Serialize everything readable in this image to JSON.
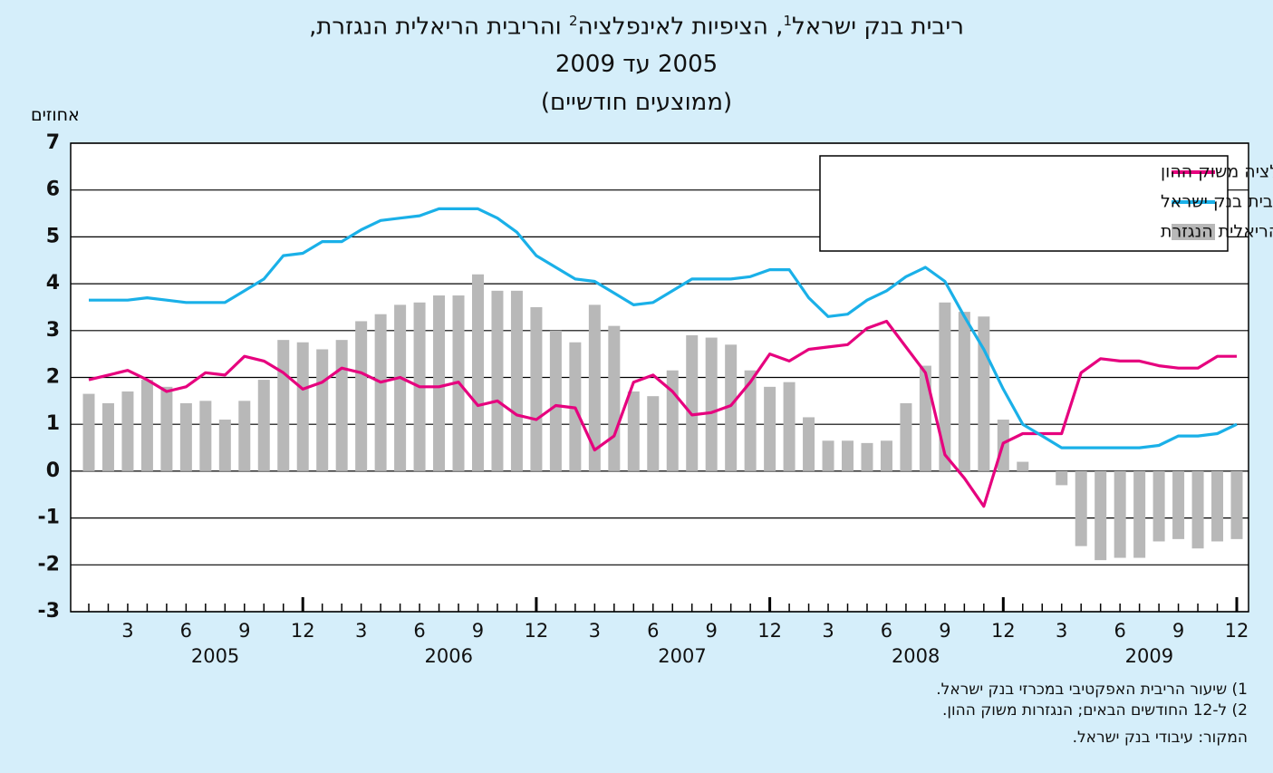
{
  "chart_data": {
    "type": "combo",
    "title_parts": [
      "ריבית בנק ישראל",
      "1",
      ", הציפיות לאינפלציה",
      "2",
      " והריבית הריאלית הנגזרת,"
    ],
    "subtitle": "2005 עד 2009",
    "subtitle2": "(ממוצעים חודשיים)",
    "y_axis_label": "אחוזים",
    "categories": [
      null,
      null,
      "3",
      null,
      null,
      "6",
      null,
      null,
      "9",
      null,
      null,
      "12",
      null,
      null,
      "3",
      null,
      null,
      "6",
      null,
      null,
      "9",
      null,
      null,
      "12",
      null,
      null,
      "3",
      null,
      null,
      "6",
      null,
      null,
      "9",
      null,
      null,
      "12",
      null,
      null,
      "3",
      null,
      null,
      "6",
      null,
      null,
      "9",
      null,
      null,
      "12",
      null,
      null,
      "3",
      null,
      null,
      "6",
      null,
      null,
      "9",
      null,
      null,
      "12"
    ],
    "year_labels": [
      "2005",
      "2006",
      "2007",
      "2008",
      "2009"
    ],
    "ylim": [
      -3,
      7
    ],
    "yticks": [
      -3,
      -2,
      -1,
      0,
      1,
      2,
      3,
      4,
      5,
      6,
      7
    ],
    "grid": true,
    "legend": "top-right",
    "series": [
      {
        "name": "הציפיות לאינפלציה משוק ההון",
        "type": "line",
        "color": "#e6007e",
        "values": [
          1.95,
          2.05,
          2.15,
          1.95,
          1.7,
          1.8,
          2.1,
          2.05,
          2.45,
          2.35,
          2.1,
          1.75,
          1.9,
          2.2,
          2.1,
          1.9,
          2.0,
          1.8,
          1.8,
          1.9,
          1.4,
          1.5,
          1.2,
          1.1,
          1.4,
          1.35,
          0.45,
          0.75,
          1.9,
          2.05,
          1.7,
          1.2,
          1.25,
          1.4,
          1.9,
          2.5,
          2.35,
          2.6,
          2.65,
          2.7,
          3.05,
          3.2,
          2.65,
          2.1,
          0.35,
          -0.15,
          -0.75,
          0.6,
          0.8,
          0.8,
          0.8,
          2.1,
          2.4,
          2.35,
          2.35,
          2.25,
          2.2,
          2.2,
          2.45,
          2.45
        ]
      },
      {
        "name": "ריבית בנק ישראל",
        "type": "line",
        "color": "#1ab0e8",
        "values": [
          3.65,
          3.65,
          3.65,
          3.7,
          3.65,
          3.6,
          3.6,
          3.6,
          3.85,
          4.1,
          4.6,
          4.65,
          4.9,
          4.9,
          5.15,
          5.35,
          5.4,
          5.45,
          5.6,
          5.6,
          5.6,
          5.4,
          5.1,
          4.6,
          4.35,
          4.1,
          4.05,
          3.8,
          3.55,
          3.6,
          3.85,
          4.1,
          4.1,
          4.1,
          4.15,
          4.3,
          4.3,
          3.7,
          3.3,
          3.35,
          3.65,
          3.85,
          4.15,
          4.35,
          4.05,
          3.3,
          2.6,
          1.75,
          1.0,
          0.75,
          0.5,
          0.5,
          0.5,
          0.5,
          0.5,
          0.55,
          0.75,
          0.75,
          0.8,
          1.0
        ]
      },
      {
        "name": "הריבית הריאלית הנגזרת",
        "type": "bar",
        "color": "#b8b8b8",
        "values": [
          1.65,
          1.45,
          1.7,
          1.95,
          1.8,
          1.45,
          1.5,
          1.1,
          1.5,
          1.95,
          2.8,
          2.75,
          2.6,
          2.8,
          3.2,
          3.35,
          3.55,
          3.6,
          3.75,
          3.75,
          4.2,
          3.85,
          3.85,
          3.5,
          3.0,
          2.75,
          3.55,
          3.1,
          1.7,
          1.6,
          2.15,
          2.9,
          2.85,
          2.7,
          2.15,
          1.8,
          1.9,
          1.15,
          0.65,
          0.65,
          0.6,
          0.65,
          1.45,
          2.25,
          3.6,
          3.4,
          3.3,
          1.1,
          0.2,
          0,
          -0.3,
          -1.6,
          -1.9,
          -1.85,
          -1.85,
          -1.5,
          -1.45,
          -1.65,
          -1.5,
          -1.45
        ]
      }
    ],
    "footnotes": [
      "1) שיעור הריבית האפקטיבי במכרזי בנק ישראל.",
      "2) ל-12 החודשים הבאים; הנגזרות משוק ההון."
    ],
    "source": "המקור: עיבודי בנק ישראל."
  }
}
